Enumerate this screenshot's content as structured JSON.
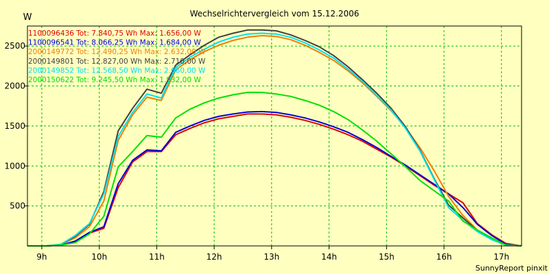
{
  "chart_data": {
    "type": "line",
    "title": "Wechselrichtervergleich vom 15.12.2006",
    "ylabel": "W",
    "xlabel": "",
    "footer": "SunnyReport pinxit",
    "xlim": [
      8.75,
      17.35
    ],
    "ylim": [
      0,
      2750
    ],
    "xticks": [
      9,
      10,
      11,
      12,
      13,
      14,
      15,
      16,
      17
    ],
    "xtick_labels": [
      "9h",
      "10h",
      "11h",
      "12h",
      "13h",
      "14h",
      "15h",
      "16h",
      "17h"
    ],
    "yticks": [
      500,
      1000,
      1500,
      2000,
      2500
    ],
    "ytick_labels": [
      "500",
      "1000",
      "1500",
      "2000",
      "2500"
    ],
    "grid": true,
    "legend_position": "top-left",
    "x": [
      8.75,
      9.08,
      9.33,
      9.58,
      9.83,
      10.08,
      10.33,
      10.58,
      10.83,
      11.08,
      11.33,
      11.58,
      11.83,
      12.08,
      12.33,
      12.58,
      12.83,
      13.08,
      13.33,
      13.58,
      13.83,
      14.08,
      14.33,
      14.58,
      14.83,
      15.08,
      15.33,
      15.58,
      15.83,
      16.08,
      16.33,
      16.58,
      16.83,
      17.08,
      17.35
    ],
    "series": [
      {
        "name": "1100096436 Tot: 7.840,75 Wh Max: 1.656,00 W",
        "color": "#e00000",
        "values": [
          0,
          0,
          10,
          50,
          160,
          220,
          730,
          1050,
          1180,
          1180,
          1390,
          1470,
          1540,
          1590,
          1620,
          1650,
          1650,
          1640,
          1610,
          1570,
          1520,
          1460,
          1390,
          1310,
          1210,
          1110,
          1000,
          880,
          760,
          650,
          540,
          280,
          140,
          30,
          0
        ]
      },
      {
        "name": "1100096541 Tot: 8.066,25 Wh Max: 1.684,00 W",
        "color": "#0000e0",
        "values": [
          0,
          0,
          10,
          60,
          170,
          240,
          780,
          1070,
          1200,
          1190,
          1420,
          1500,
          1570,
          1620,
          1650,
          1675,
          1680,
          1670,
          1640,
          1600,
          1550,
          1490,
          1420,
          1330,
          1230,
          1120,
          1010,
          890,
          770,
          650,
          480,
          270,
          130,
          20,
          0
        ]
      },
      {
        "name": "2000149772 Tot: 12.490,25 Wh Max: 2.632,00 W",
        "color": "#f08000",
        "values": [
          0,
          0,
          20,
          100,
          240,
          560,
          1320,
          1640,
          1860,
          1820,
          2200,
          2330,
          2430,
          2510,
          2570,
          2610,
          2630,
          2620,
          2580,
          2510,
          2420,
          2320,
          2190,
          2040,
          1870,
          1690,
          1480,
          1230,
          940,
          620,
          380,
          200,
          90,
          10,
          0
        ]
      },
      {
        "name": "2000149801 Tot: 12.827,00 Wh Max: 2.710,00 W",
        "color": "#404040",
        "values": [
          0,
          0,
          20,
          120,
          270,
          680,
          1440,
          1720,
          1960,
          1910,
          2260,
          2390,
          2510,
          2610,
          2660,
          2700,
          2700,
          2690,
          2640,
          2570,
          2490,
          2380,
          2240,
          2080,
          1910,
          1720,
          1490,
          1200,
          840,
          510,
          350,
          190,
          80,
          10,
          0
        ]
      },
      {
        "name": "2000149852 Tot: 12.568,50 Wh Max: 2.660,00 W",
        "color": "#00e0f0",
        "values": [
          0,
          0,
          20,
          130,
          280,
          650,
          1370,
          1670,
          1900,
          1850,
          2230,
          2360,
          2460,
          2550,
          2610,
          2650,
          2660,
          2650,
          2610,
          2540,
          2450,
          2350,
          2210,
          2060,
          1880,
          1700,
          1470,
          1190,
          830,
          480,
          320,
          180,
          80,
          10,
          0
        ]
      },
      {
        "name": "2000150622 Tot: 9.245,50 Wh Max: 1.932,00 W",
        "color": "#00e000",
        "values": [
          0,
          0,
          10,
          40,
          150,
          370,
          990,
          1180,
          1380,
          1360,
          1600,
          1710,
          1790,
          1850,
          1890,
          1920,
          1920,
          1900,
          1870,
          1820,
          1760,
          1680,
          1580,
          1450,
          1310,
          1150,
          990,
          820,
          690,
          560,
          310,
          200,
          100,
          10,
          0
        ]
      }
    ]
  }
}
